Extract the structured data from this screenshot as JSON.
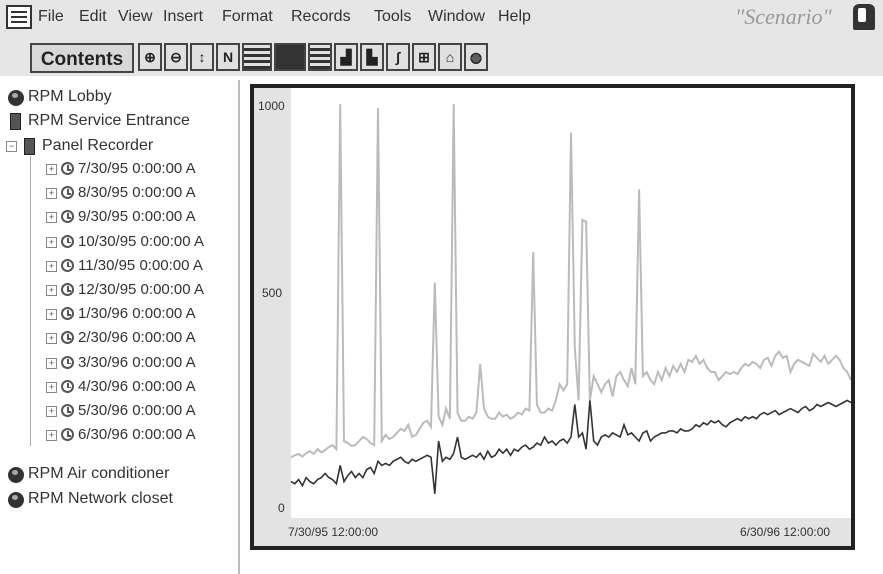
{
  "menu": {
    "items": [
      "File",
      "Edit",
      "View",
      "Insert",
      "Format",
      "Records",
      "Tools",
      "Window",
      "Help"
    ],
    "brand": "\"Scenario\""
  },
  "toolbar": {
    "contents_label": "Contents",
    "buttons": [
      "zoom-in",
      "zoom-out",
      "probe",
      "N",
      "strip-chart",
      "dark-chart",
      "table",
      "bar-chart",
      "histogram",
      "stats",
      "xy-plot",
      "home",
      "globe"
    ]
  },
  "tree": {
    "top_items": [
      "RPM Lobby",
      "RPM Service Entrance",
      "Panel Recorder"
    ],
    "dates": [
      "7/30/95 0:00:00 A",
      "8/30/95 0:00:00 A",
      "9/30/95 0:00:00 A",
      "10/30/95 0:00:00 A",
      "11/30/95 0:00:00 A",
      "12/30/95 0:00:00 A",
      "1/30/96 0:00:00 A",
      "2/30/96 0:00:00 A",
      "3/30/96 0:00:00 A",
      "4/30/96 0:00:00 A",
      "5/30/96 0:00:00 A",
      "6/30/96 0:00:00 A"
    ],
    "bottom_items": [
      "RPM Air conditioner",
      "RPM Network closet"
    ]
  },
  "chart_data": {
    "type": "line",
    "ylim": [
      0,
      1000
    ],
    "yticks": [
      "1000",
      "500",
      "0"
    ],
    "x_start_label": "7/30/95 12:00:00",
    "x_end_label": "6/30/96 12:00:00",
    "series": [
      {
        "color": "#bbbbbb",
        "values": [
          120,
          125,
          128,
          122,
          130,
          135,
          128,
          140,
          132,
          138,
          145,
          150,
          140,
          990,
          160,
          155,
          148,
          150,
          160,
          170,
          165,
          155,
          150,
          980,
          160,
          175,
          165,
          170,
          180,
          190,
          185,
          200,
          170,
          175,
          190,
          205,
          210,
          195,
          550,
          220,
          200,
          240,
          215,
          990,
          230,
          210,
          210,
          220,
          215,
          230,
          350,
          240,
          220,
          215,
          215,
          230,
          220,
          225,
          215,
          220,
          230,
          225,
          240,
          235,
          625,
          250,
          230,
          230,
          240,
          235,
          260,
          300,
          285,
          300,
          920,
          390,
          260,
          705,
          700,
          260,
          320,
          300,
          280,
          300,
          310,
          270,
          320,
          330,
          310,
          295,
          340,
          300,
          780,
          320,
          330,
          310,
          300,
          330,
          310,
          340,
          320,
          345,
          330,
          350,
          330,
          360,
          355,
          370,
          350,
          360,
          340,
          330,
          330,
          310,
          320,
          330,
          325,
          330,
          325,
          340,
          350,
          345,
          355,
          350,
          340,
          360,
          365,
          345,
          370,
          380,
          365,
          370,
          330,
          350,
          360,
          355,
          350,
          345,
          375,
          365,
          355,
          370,
          350,
          360,
          370,
          360,
          340,
          330,
          310
        ]
      },
      {
        "color": "#333333",
        "values": [
          60,
          55,
          65,
          50,
          70,
          60,
          55,
          65,
          70,
          80,
          70,
          65,
          55,
          100,
          60,
          75,
          85,
          70,
          80,
          70,
          90,
          95,
          80,
          110,
          100,
          105,
          100,
          110,
          115,
          120,
          110,
          105,
          115,
          110,
          115,
          120,
          125,
          120,
          30,
          160,
          110,
          120,
          115,
          130,
          170,
          120,
          115,
          120,
          125,
          120,
          130,
          115,
          135,
          120,
          125,
          140,
          130,
          140,
          125,
          140,
          135,
          145,
          150,
          140,
          145,
          155,
          150,
          170,
          155,
          160,
          150,
          160,
          165,
          155,
          170,
          250,
          170,
          180,
          140,
          260,
          160,
          150,
          170,
          175,
          170,
          180,
          175,
          170,
          200,
          175,
          180,
          170,
          160,
          180,
          185,
          160,
          170,
          175,
          180,
          180,
          185,
          185,
          180,
          190,
          185,
          185,
          190,
          200,
          195,
          205,
          200,
          210,
          205,
          210,
          200,
          195,
          205,
          210,
          215,
          210,
          220,
          215,
          220,
          215,
          225,
          230,
          225,
          230,
          235,
          225,
          230,
          235,
          240,
          235,
          230,
          240,
          245,
          235,
          240,
          250,
          245,
          250,
          255,
          250,
          245,
          250,
          255,
          260,
          255
        ]
      }
    ]
  }
}
